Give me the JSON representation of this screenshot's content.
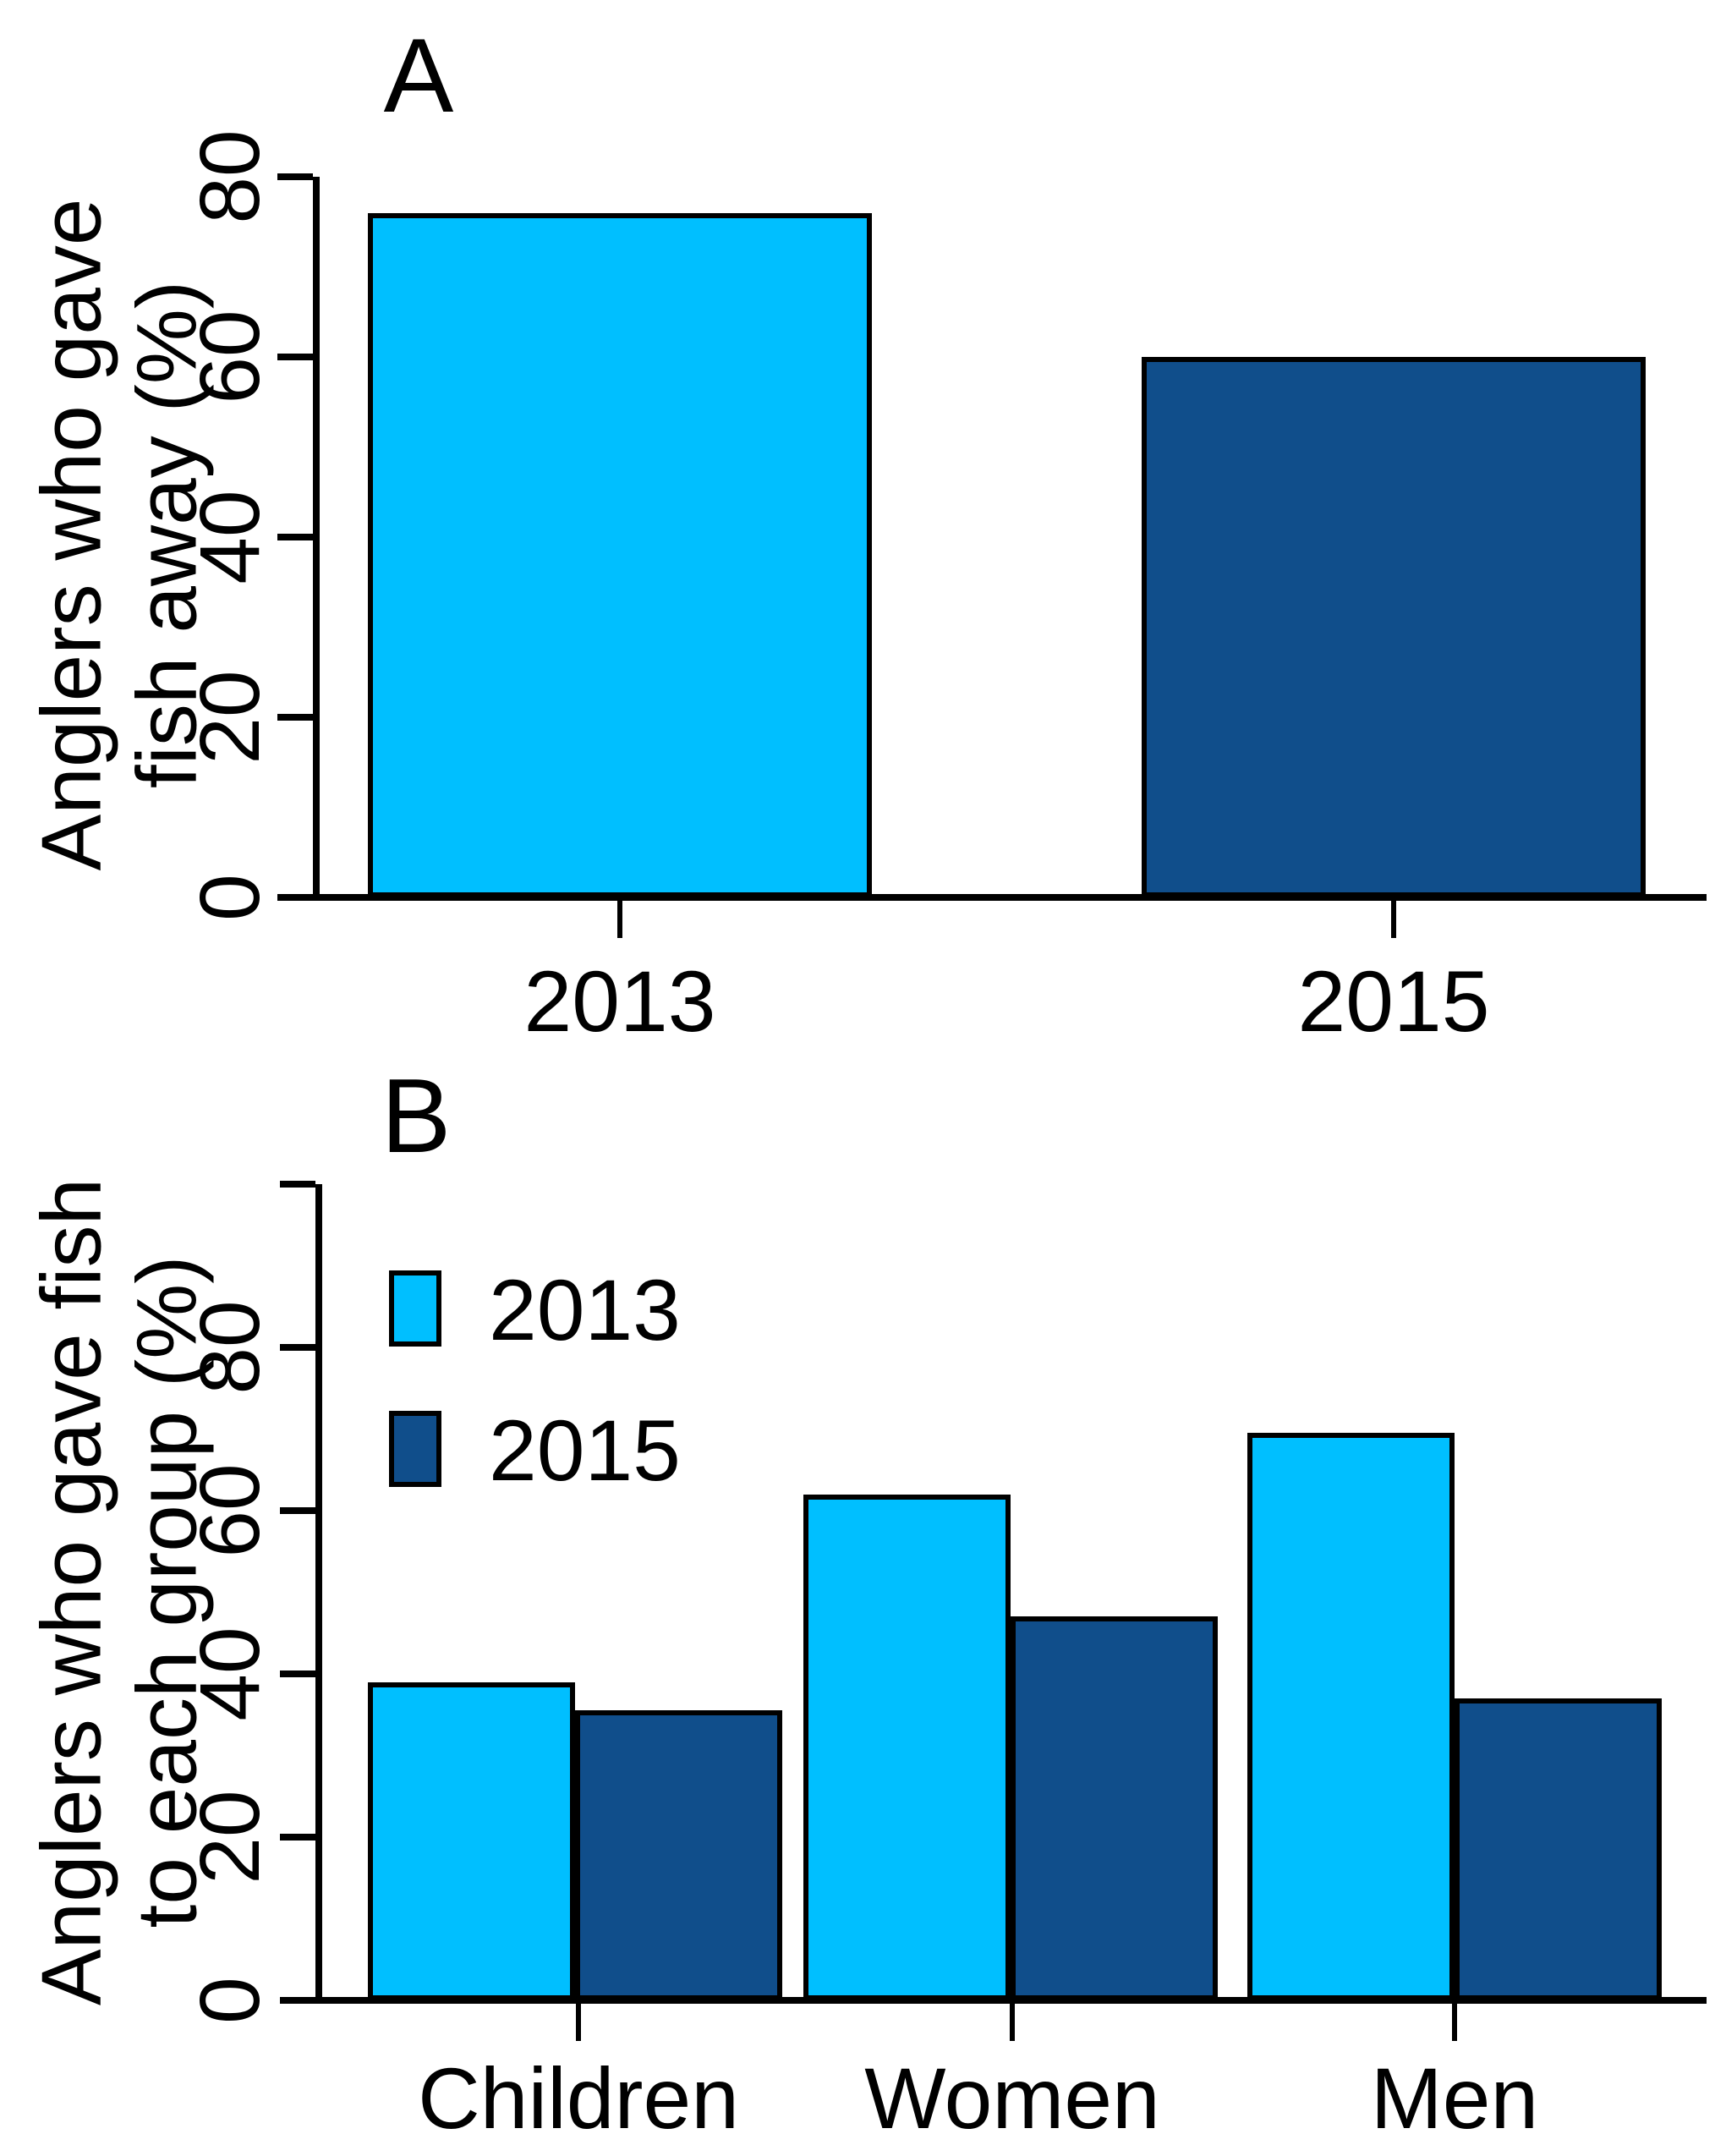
{
  "figure": {
    "background": "#FFFFFF",
    "axis_color": "#000000",
    "text_color": "#000000",
    "color_2013": "#00BFFF",
    "color_2015": "#104E8B"
  },
  "chart_data": [
    {
      "type": "bar",
      "panel_label": "A",
      "categories": [
        "2013",
        "2015"
      ],
      "values": [
        76,
        60
      ],
      "bar_colors": [
        "#00BFFF",
        "#104E8B"
      ],
      "ylabel": "Anglers who gave fish away (%)",
      "ylabel_lines": [
        "Anglers who gave",
        "fish away (%)"
      ],
      "yticks": [
        0,
        20,
        40,
        60,
        80
      ],
      "ylim": [
        0,
        80
      ],
      "grid": false,
      "legend": null
    },
    {
      "type": "bar",
      "panel_label": "B",
      "categories": [
        "Children",
        "Women",
        "Men"
      ],
      "series": [
        {
          "name": "2013",
          "color": "#00BFFF",
          "values": [
            39,
            62,
            69.5
          ]
        },
        {
          "name": "2015",
          "color": "#104E8B",
          "values": [
            35.5,
            47,
            37
          ]
        }
      ],
      "ylabel": "Anglers who gave fish to each group (%)",
      "ylabel_lines": [
        "Anglers who gave fish",
        "to each group (%)"
      ],
      "yticks": [
        0,
        20,
        40,
        60,
        80
      ],
      "unlabeled_top_tick": 100,
      "ylim": [
        0,
        100
      ],
      "grid": false,
      "legend_position": "upper-left-inside"
    }
  ]
}
